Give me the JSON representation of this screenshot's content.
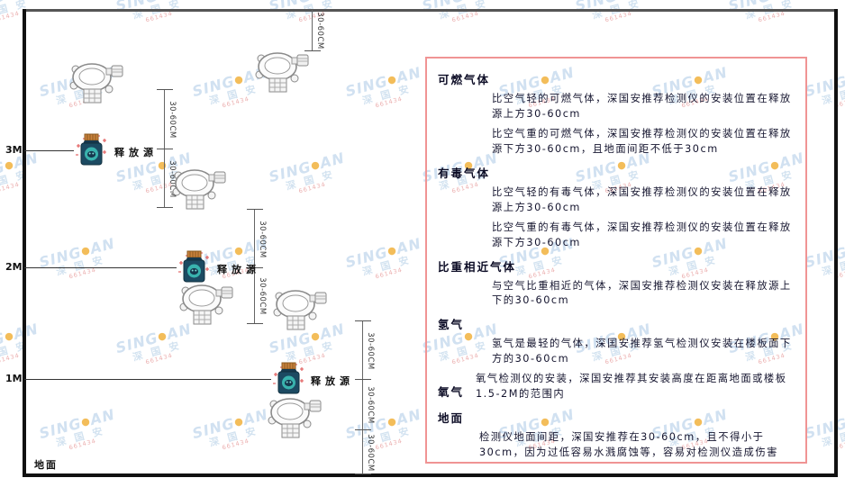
{
  "diagram": {
    "dim_label": "30-60CM",
    "release_source_label": "释放源",
    "ground_label": "地面",
    "levels": [
      {
        "label": "3M"
      },
      {
        "label": "2M"
      },
      {
        "label": "1M"
      }
    ]
  },
  "panel": {
    "border_color": "#f09494",
    "sections": [
      {
        "heading": "可燃气体",
        "paragraphs": [
          "比空气轻的可燃气体，深国安推荐检测仪的安装位置在释放源上方30-60cm",
          "比空气重的可燃气体，深国安推荐检测仪的安装位置在释放源下方30-60cm，且地面间距不低于30cm"
        ]
      },
      {
        "heading": "有毒气体",
        "paragraphs": [
          "比空气轻的有毒气体，深国安推荐检测仪的安装位置在释放源上方30-60cm",
          "比空气重的有毒气体，深国安推荐检测仪的安装位置在释放源下方30-60cm"
        ]
      },
      {
        "heading": "比重相近气体",
        "paragraphs": [
          "与空气比重相近的气体，深国安推荐检测仪安装在释放源上下的30-60cm"
        ]
      },
      {
        "heading": "氢气",
        "paragraphs": [
          "氢气是最轻的气体，深国安推荐氢气检测仪安装在楼板面下方的30-60cm"
        ]
      },
      {
        "heading": "氧气",
        "paragraphs": [
          "氧气检测仪的安装，深国安推荐其安装高度在距离地面或楼板1.5-2M的范围内"
        ]
      },
      {
        "heading": "地面",
        "paragraphs": [
          "检测仪地面间距，深国安推荐在30-60cm，且不得小于30cm，因为过低容易水溅腐蚀等，容易对检测仪造成伤害"
        ]
      }
    ]
  },
  "watermark": {
    "brand_left": "SING",
    "brand_dot": "●",
    "brand_right": "AN",
    "company": "深 国 安",
    "code": "661434"
  }
}
